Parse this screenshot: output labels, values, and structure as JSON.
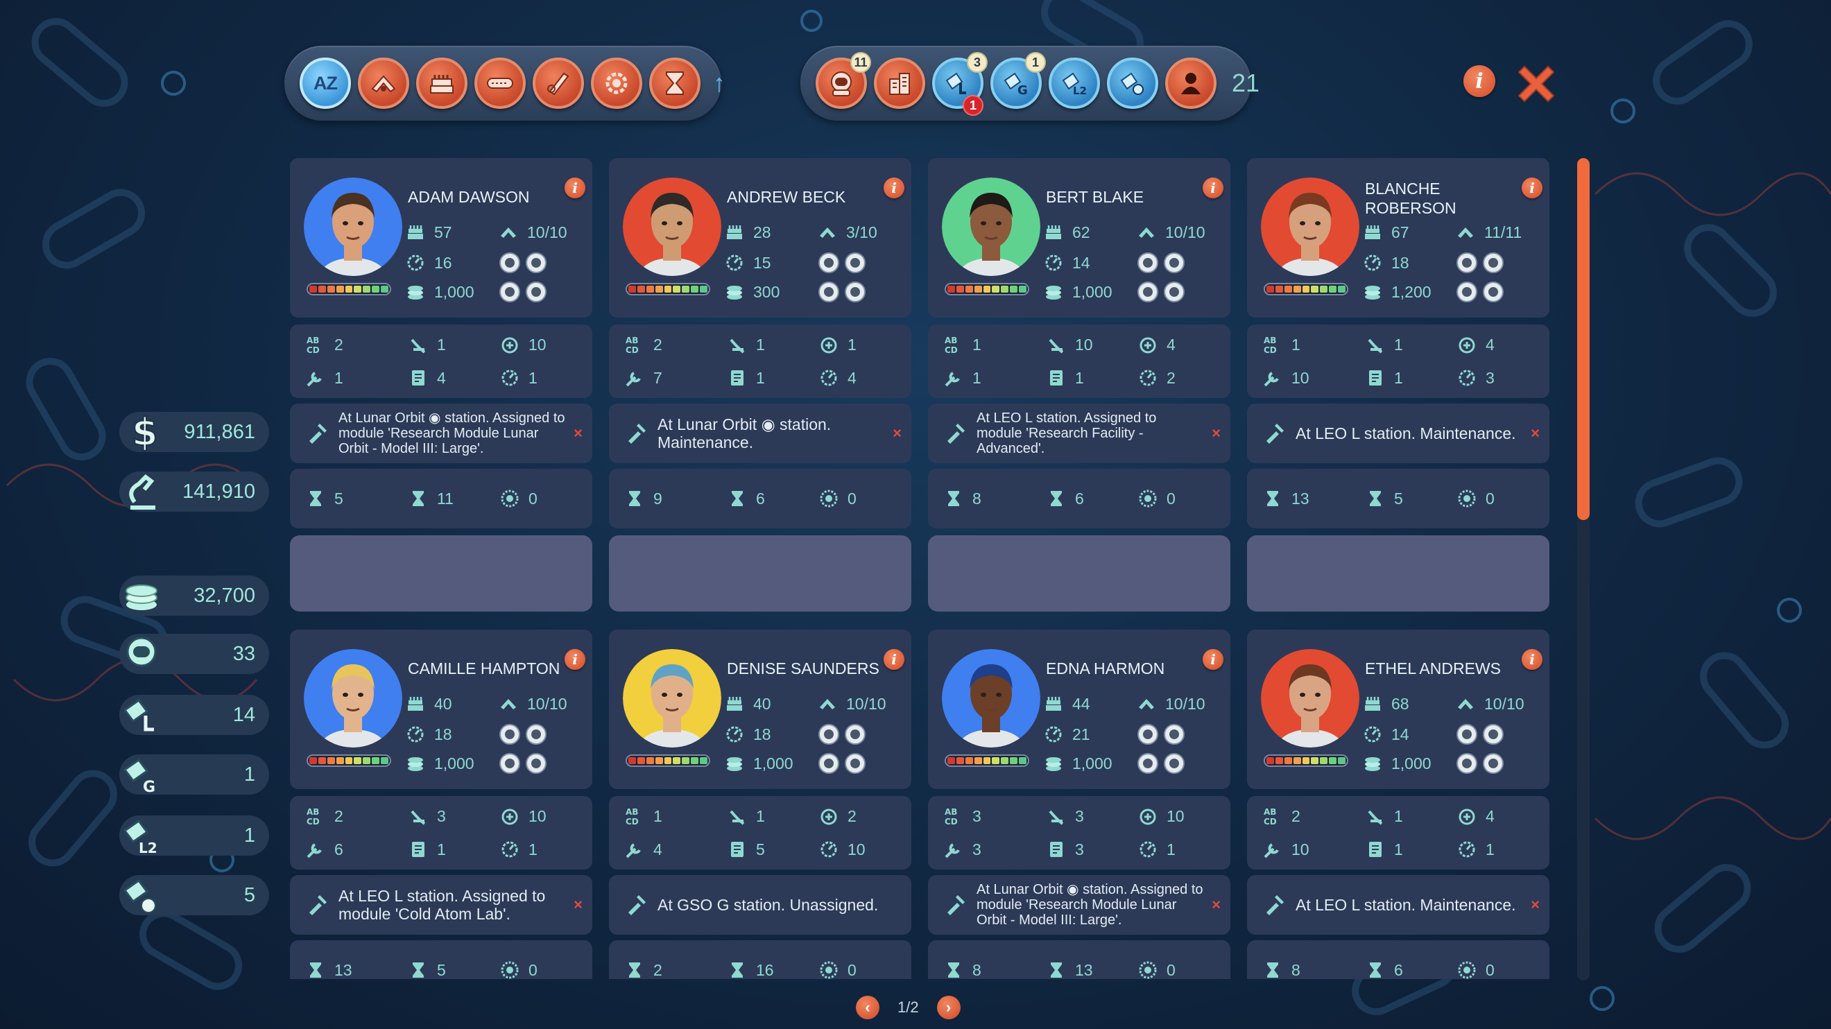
{
  "toolbar": {
    "sort_buttons": [
      {
        "icon": "az-sort-icon",
        "label": "AZ",
        "active": true
      },
      {
        "icon": "rank-chevron-icon"
      },
      {
        "icon": "crew-stack-icon"
      },
      {
        "icon": "salary-bar-icon"
      },
      {
        "icon": "skills-pencil-icon"
      },
      {
        "icon": "gear-cycle-icon"
      },
      {
        "icon": "hourglass-icon"
      }
    ],
    "sort_direction_icon": "arrow-up-icon",
    "sort_direction_glyph": "↑",
    "filter_buttons": [
      {
        "icon": "astronaut-helmet-icon",
        "badge": "11"
      },
      {
        "icon": "ground-building-icon"
      },
      {
        "icon": "station-l-icon",
        "badge": "3",
        "alert": "1"
      },
      {
        "icon": "station-g-icon",
        "badge": "1"
      },
      {
        "icon": "station-l2-icon"
      },
      {
        "icon": "station-moon-icon"
      },
      {
        "icon": "person-silhouette-icon"
      }
    ],
    "crew_count": "21"
  },
  "resources": [
    {
      "icon": "dollar-icon",
      "value": "911,861"
    },
    {
      "icon": "research-microscope-icon",
      "value": "141,910"
    },
    {
      "icon": "coins-stack-icon",
      "value": "32,700"
    },
    {
      "icon": "astronaut-helmet-icon",
      "value": "33"
    },
    {
      "icon": "station-l-icon",
      "value": "14"
    },
    {
      "icon": "station-g-icon",
      "value": "1"
    },
    {
      "icon": "station-l2-icon",
      "value": "1"
    },
    {
      "icon": "station-moon-icon",
      "value": "5"
    }
  ],
  "colors": {
    "accent_orange": "#e9593a",
    "card_bg": "#2c3a58",
    "text_teal": "#8fd9d0",
    "empty_slot": "#555b7d"
  },
  "crew": [
    {
      "name": "ADAM DAWSON",
      "portrait_color": "#3f7ff0",
      "skin": "#d9a07a",
      "hair": "#4a3121",
      "stats": {
        "a": "57",
        "b": "10/10",
        "c": "16",
        "d": "1,000"
      },
      "skills": [
        "2",
        "1",
        "10",
        "1",
        "4",
        "1"
      ],
      "status": "At Lunar Orbit ◉ station. Assigned to module 'Research Module Lunar Orbit - Model III: Large'.",
      "times": [
        "5",
        "11",
        "0"
      ],
      "empty_slot": true
    },
    {
      "name": "ANDREW BECK",
      "portrait_color": "#e34a32",
      "skin": "#cf9b73",
      "hair": "#2f2a28",
      "stats": {
        "a": "28",
        "b": "3/10",
        "c": "15",
        "d": "300"
      },
      "skills": [
        "2",
        "1",
        "1",
        "7",
        "1",
        "4"
      ],
      "status": "At Lunar Orbit ◉ station. Maintenance.",
      "times": [
        "9",
        "6",
        "0"
      ],
      "empty_slot": true
    },
    {
      "name": "BERT BLAKE",
      "portrait_color": "#5fd28f",
      "skin": "#8c5a3c",
      "hair": "#1d1a18",
      "stats": {
        "a": "62",
        "b": "10/10",
        "c": "14",
        "d": "1,000"
      },
      "skills": [
        "1",
        "10",
        "4",
        "1",
        "1",
        "2"
      ],
      "status": "At LEO L station. Assigned to module 'Research Facility - Advanced'.",
      "times": [
        "8",
        "6",
        "0"
      ],
      "empty_slot": true
    },
    {
      "name": "BLANCHE ROBERSON",
      "portrait_color": "#e34a32",
      "skin": "#d6a07c",
      "hair": "#7a3a22",
      "stats": {
        "a": "67",
        "b": "11/11",
        "c": "18",
        "d": "1,200"
      },
      "skills": [
        "1",
        "1",
        "4",
        "10",
        "1",
        "3"
      ],
      "status": "At LEO L station. Maintenance.",
      "times": [
        "13",
        "5",
        "0"
      ],
      "empty_slot": true
    },
    {
      "name": "CAMILLE HAMPTON",
      "portrait_color": "#3f7ff0",
      "skin": "#e2b48e",
      "hair": "#e8c45a",
      "stats": {
        "a": "40",
        "b": "10/10",
        "c": "18",
        "d": "1,000"
      },
      "skills": [
        "2",
        "3",
        "10",
        "6",
        "1",
        "1"
      ],
      "status": "At LEO L station. Assigned to module 'Cold Atom Lab'.",
      "times": [
        "13",
        "5",
        "0"
      ],
      "empty_slot": false
    },
    {
      "name": "DENISE SAUNDERS",
      "portrait_color": "#f2cf3c",
      "skin": "#e0b08a",
      "hair": "#5ea3c6",
      "stats": {
        "a": "40",
        "b": "10/10",
        "c": "18",
        "d": "1,000"
      },
      "skills": [
        "1",
        "1",
        "2",
        "4",
        "5",
        "10"
      ],
      "status": "At GSO G station. Unassigned.",
      "times": [
        "2",
        "16",
        "0"
      ],
      "empty_slot": false
    },
    {
      "name": "EDNA HARMON",
      "portrait_color": "#3f7ff0",
      "skin": "#6b3f28",
      "hair": "#1f3f8a",
      "stats": {
        "a": "44",
        "b": "10/10",
        "c": "21",
        "d": "1,000"
      },
      "skills": [
        "3",
        "3",
        "10",
        "3",
        "3",
        "1"
      ],
      "status": "At Lunar Orbit ◉ station. Assigned to module 'Research Module Lunar Orbit - Model III: Large'.",
      "times": [
        "8",
        "13",
        "0"
      ],
      "empty_slot": false
    },
    {
      "name": "ETHEL ANDREWS",
      "portrait_color": "#e34a32",
      "skin": "#d9a483",
      "hair": "#6d3822",
      "stats": {
        "a": "68",
        "b": "10/10",
        "c": "14",
        "d": "1,000"
      },
      "skills": [
        "2",
        "1",
        "4",
        "10",
        "1",
        "1"
      ],
      "status": "At LEO L station. Maintenance.",
      "times": [
        "8",
        "6",
        "0"
      ],
      "empty_slot": false
    }
  ],
  "pagination": {
    "label": "1/2",
    "prev_glyph": "‹",
    "next_glyph": "›"
  }
}
